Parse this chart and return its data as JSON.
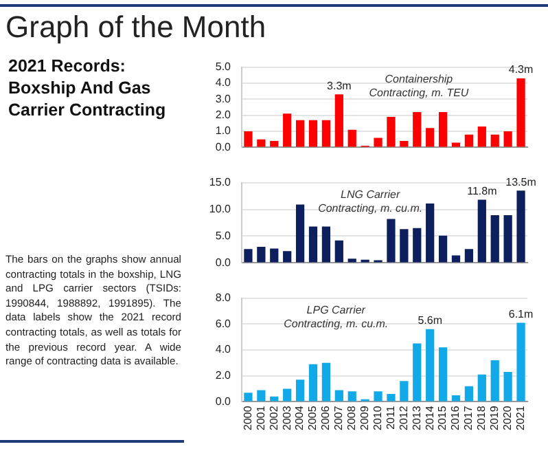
{
  "chart_data": [
    {
      "type": "bar",
      "title": "Graph of the Month",
      "subtitle": "2021 Records: Boxship And Gas Carrier Contracting",
      "annotations": [
        "Containership\nContracting, m. TEU",
        "The bars on the graphs show annual contracting totals in the boxship, LNG and LPG carrier sectors (TSIDs: 1990844, 1988892, 1991895). The data labels show the 2021 record contracting totals, as well as totals for the previous record year. A wide range of contracting data is available."
      ],
      "categories": [
        "2000",
        "2001",
        "2002",
        "2003",
        "2004",
        "2005",
        "2006",
        "2007",
        "2008",
        "2009",
        "2010",
        "2011",
        "2012",
        "2013",
        "2014",
        "2015",
        "2016",
        "2017",
        "2018",
        "2019",
        "2020",
        "2021"
      ],
      "values": [
        1.0,
        0.5,
        0.4,
        2.1,
        1.7,
        1.7,
        1.7,
        3.3,
        1.1,
        0.1,
        0.6,
        1.9,
        0.4,
        2.2,
        1.2,
        2.2,
        0.3,
        0.8,
        1.3,
        0.8,
        1.0,
        4.3
      ],
      "value_labels": [
        null,
        null,
        null,
        null,
        null,
        null,
        null,
        "3.3m",
        null,
        null,
        null,
        null,
        null,
        null,
        null,
        null,
        null,
        null,
        null,
        null,
        null,
        "4.3m"
      ],
      "color": "#ff0000",
      "ylim": [
        0,
        5
      ],
      "yticks": [
        {
          "value": 0,
          "label": "0.0"
        },
        {
          "value": 1,
          "label": "1.0"
        },
        {
          "value": 2,
          "label": "2.0"
        },
        {
          "value": 3,
          "label": "3.0"
        },
        {
          "value": 4,
          "label": "4.0"
        },
        {
          "value": 5,
          "label": "5.0"
        }
      ],
      "grid": "y",
      "tick_labels": "y"
    },
    {
      "type": "bar",
      "annotations": [
        "LNG Carrier\nContracting, m. cu.m."
      ],
      "categories": [
        "2000",
        "2001",
        "2002",
        "2003",
        "2004",
        "2005",
        "2006",
        "2007",
        "2008",
        "2009",
        "2010",
        "2011",
        "2012",
        "2013",
        "2014",
        "2015",
        "2016",
        "2017",
        "2018",
        "2019",
        "2020",
        "2021"
      ],
      "values": [
        2.6,
        3.0,
        2.7,
        2.2,
        10.9,
        6.8,
        6.8,
        4.2,
        0.8,
        0.6,
        0.5,
        8.2,
        6.3,
        6.5,
        11.1,
        5.1,
        1.4,
        2.6,
        11.8,
        8.9,
        8.9,
        13.5
      ],
      "value_labels": [
        null,
        null,
        null,
        null,
        null,
        null,
        null,
        null,
        null,
        null,
        null,
        null,
        null,
        null,
        null,
        null,
        null,
        null,
        "11.8m",
        null,
        null,
        "13.5m"
      ],
      "color": "#0d1f5c",
      "ylim": [
        0,
        15
      ],
      "yticks": [
        {
          "value": 0,
          "label": "0.0"
        },
        {
          "value": 5,
          "label": "5.0"
        },
        {
          "value": 10,
          "label": "10.0"
        },
        {
          "value": 15,
          "label": "15.0"
        }
      ],
      "grid": "y",
      "tick_labels": "y"
    },
    {
      "type": "bar",
      "annotations": [
        "LPG Carrier\nContracting, m. cu.m."
      ],
      "categories": [
        "2000",
        "2001",
        "2002",
        "2003",
        "2004",
        "2005",
        "2006",
        "2007",
        "2008",
        "2009",
        "2010",
        "2011",
        "2012",
        "2013",
        "2014",
        "2015",
        "2016",
        "2017",
        "2018",
        "2019",
        "2020",
        "2021"
      ],
      "values": [
        0.7,
        0.9,
        0.4,
        1.0,
        1.7,
        2.9,
        3.0,
        0.9,
        0.8,
        0.2,
        0.8,
        0.6,
        1.6,
        4.5,
        5.6,
        4.2,
        0.5,
        1.2,
        2.1,
        3.2,
        2.3,
        6.1
      ],
      "value_labels": [
        null,
        null,
        null,
        null,
        null,
        null,
        null,
        null,
        null,
        null,
        null,
        null,
        null,
        null,
        "5.6m",
        null,
        null,
        null,
        null,
        null,
        null,
        "6.1m"
      ],
      "color": "#12a9e8",
      "ylim": [
        0,
        8
      ],
      "yticks": [
        {
          "value": 0,
          "label": "0.0"
        },
        {
          "value": 2,
          "label": "2.0"
        },
        {
          "value": 4,
          "label": "4.0"
        },
        {
          "value": 6,
          "label": "6.0"
        },
        {
          "value": 8,
          "label": "8.0"
        }
      ],
      "grid": "y"
    }
  ]
}
